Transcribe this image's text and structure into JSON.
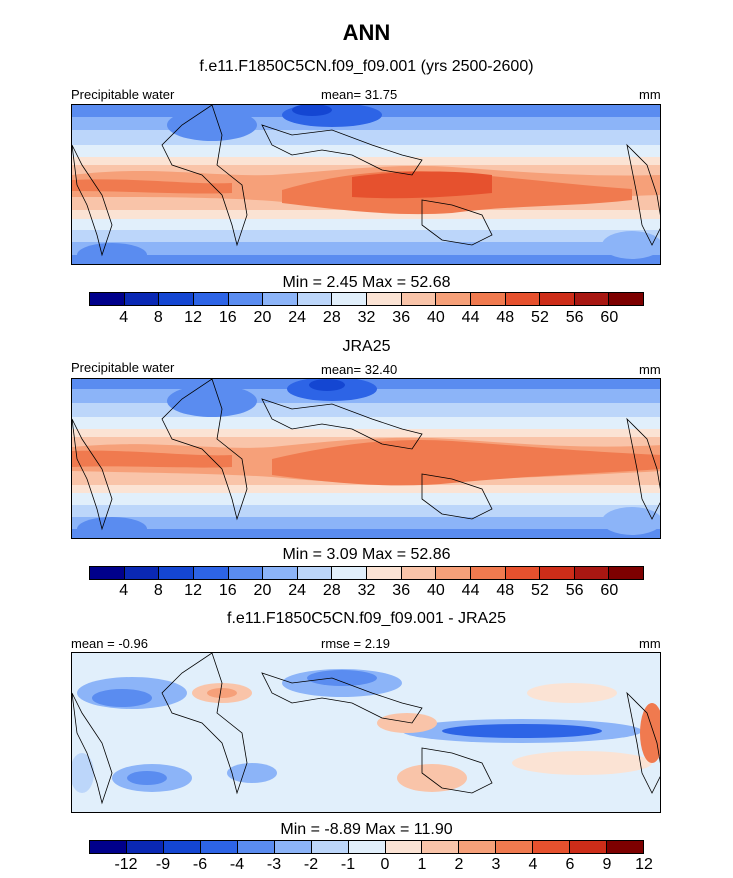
{
  "title": "ANN",
  "colors": {
    "abs_scale": [
      "#00008b",
      "#0a28b4",
      "#1446d2",
      "#2d64e6",
      "#5a8cf0",
      "#8cb4f8",
      "#bcd6fa",
      "#e1effb",
      "#fbe3d4",
      "#f9c4a9",
      "#f6a079",
      "#f07a4f",
      "#e6512e",
      "#cd2d19",
      "#a81712",
      "#7d0000"
    ],
    "diff_scale": [
      "#00008b",
      "#0a28b4",
      "#1446d2",
      "#2d64e6",
      "#5a8cf0",
      "#8cb4f8",
      "#bcd6fa",
      "#e1effb",
      "#fbe3d4",
      "#f9c4a9",
      "#f6a079",
      "#f07a4f",
      "#e6512e",
      "#cd2d19",
      "#7d0000"
    ]
  },
  "panels": [
    {
      "title": "f.e11.F1850C5CN.f09_f09.001 (yrs 2500-2600)",
      "left_label": "Precipitable water",
      "center_label": "mean=  31.75",
      "right_label": "mm",
      "minmax": "Min =   2.45 Max =  52.68",
      "colorbar_labels": [
        "4",
        "8",
        "12",
        "16",
        "20",
        "24",
        "28",
        "32",
        "36",
        "40",
        "44",
        "48",
        "52",
        "56",
        "60"
      ]
    },
    {
      "title": "JRA25",
      "left_label": "Precipitable water",
      "center_label": "mean=  32.40",
      "right_label": "mm",
      "minmax": "Min =   3.09 Max =  52.86",
      "colorbar_labels": [
        "4",
        "8",
        "12",
        "16",
        "20",
        "24",
        "28",
        "32",
        "36",
        "40",
        "44",
        "48",
        "52",
        "56",
        "60"
      ]
    },
    {
      "title": "f.e11.F1850C5CN.f09_f09.001 - JRA25",
      "left_label": "mean =  -0.96",
      "center_label": "rmse =   2.19",
      "right_label": "mm",
      "minmax": "Min =  -8.89 Max =  11.90",
      "colorbar_labels": [
        "-12",
        "-9",
        "-6",
        "-4",
        "-3",
        "-2",
        "-1",
        "0",
        "1",
        "2",
        "3",
        "4",
        "6",
        "9",
        "12"
      ]
    }
  ]
}
